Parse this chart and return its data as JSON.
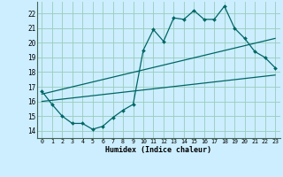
{
  "xlabel": "Humidex (Indice chaleur)",
  "bg_color": "#cceeff",
  "grid_color": "#99ccbb",
  "line_color": "#006666",
  "xlim": [
    -0.5,
    23.5
  ],
  "ylim": [
    13.5,
    22.8
  ],
  "xticks": [
    0,
    1,
    2,
    3,
    4,
    5,
    6,
    7,
    8,
    9,
    10,
    11,
    12,
    13,
    14,
    15,
    16,
    17,
    18,
    19,
    20,
    21,
    22,
    23
  ],
  "yticks": [
    14,
    15,
    16,
    17,
    18,
    19,
    20,
    21,
    22
  ],
  "main_x": [
    0,
    1,
    2,
    3,
    4,
    5,
    6,
    7,
    8,
    9,
    10,
    11,
    12,
    13,
    14,
    15,
    16,
    17,
    18,
    19,
    20,
    21,
    22,
    23
  ],
  "main_y": [
    16.7,
    15.8,
    15.0,
    14.5,
    14.5,
    14.1,
    14.3,
    14.9,
    15.4,
    15.8,
    19.5,
    20.9,
    20.1,
    21.7,
    21.6,
    22.2,
    21.6,
    21.6,
    22.5,
    21.0,
    20.3,
    19.4,
    19.0,
    18.3
  ],
  "line1_x": [
    0,
    23
  ],
  "line1_y": [
    16.0,
    17.8
  ],
  "line2_x": [
    0,
    23
  ],
  "line2_y": [
    16.5,
    20.3
  ]
}
